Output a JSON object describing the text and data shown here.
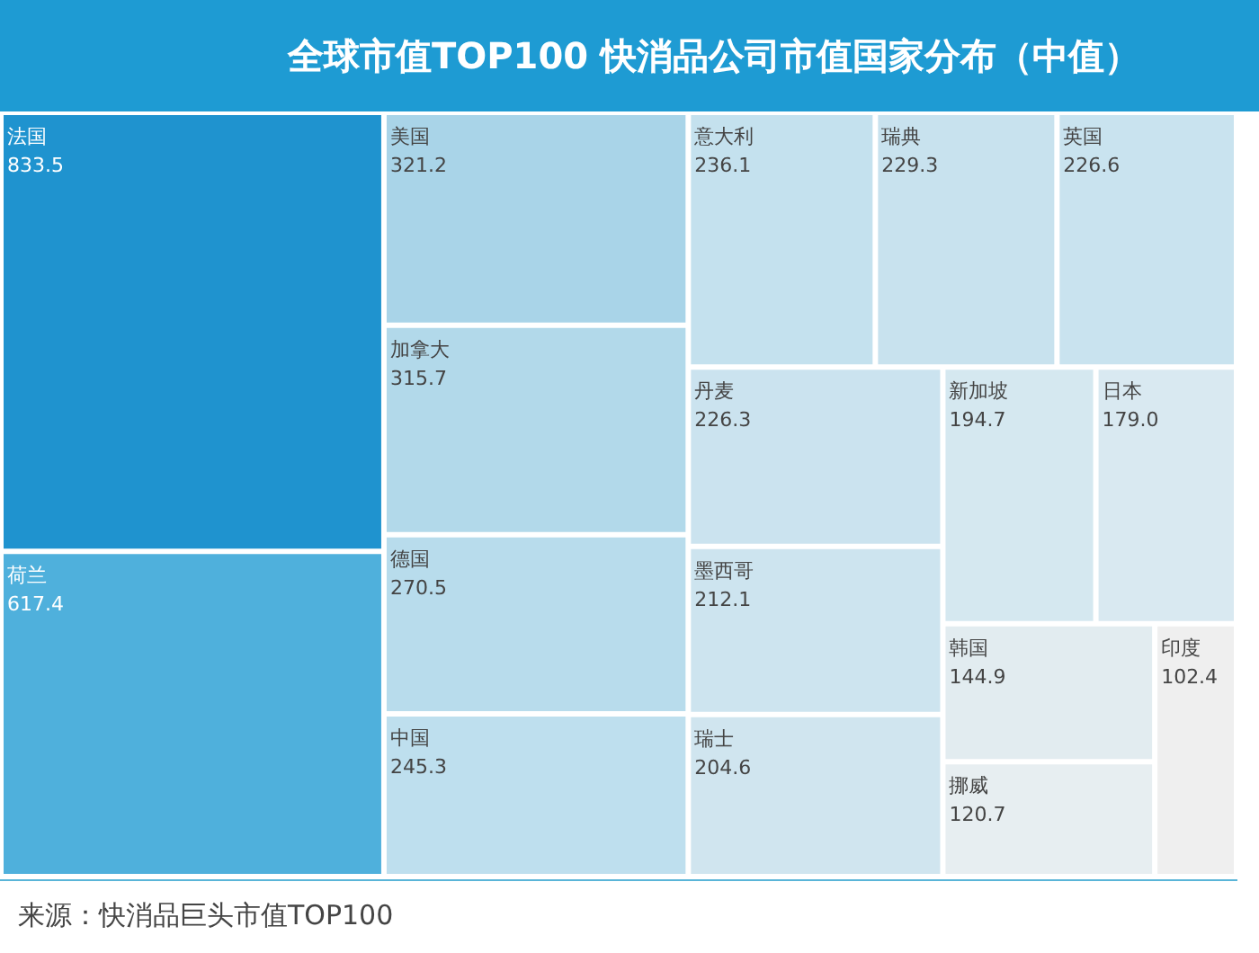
{
  "chart_data": {
    "type": "other",
    "title": "全球市值TOP100 快消品公司市值国家分布（中值）",
    "categories": [
      "法国",
      "荷兰",
      "美国",
      "加拿大",
      "德国",
      "中国",
      "意大利",
      "瑞典",
      "英国",
      "丹麦",
      "墨西哥",
      "瑞士",
      "新加坡",
      "日本",
      "韩国",
      "挪威",
      "印度"
    ],
    "values": [
      833.5,
      617.4,
      321.2,
      315.7,
      270.5,
      245.3,
      236.1,
      229.3,
      226.6,
      226.3,
      212.1,
      204.6,
      194.7,
      179.0,
      144.9,
      120.7,
      102.4
    ],
    "value_labels": [
      "833.5",
      "617.4",
      "321.2",
      "315.7",
      "270.5",
      "245.3",
      "236.1",
      "229.3",
      "226.6",
      "226.3",
      "212.1",
      "204.6",
      "194.7",
      "179.0",
      "144.9",
      "120.7",
      "102.4"
    ],
    "colors": [
      "#1f93cf",
      "#4fb0dc",
      "#a9d4e8",
      "#b2d9ea",
      "#b8dcec",
      "#bedfee",
      "#c4e1ee",
      "#c8e2ee",
      "#c9e3ef",
      "#cbe3ef",
      "#cde4ef",
      "#d0e5ef",
      "#d5e8f0",
      "#d9e9f1",
      "#e2ecf0",
      "#e7eef1",
      "#efefef"
    ],
    "annotations": [
      "来源：快消品巨头市值TOP100"
    ]
  }
}
